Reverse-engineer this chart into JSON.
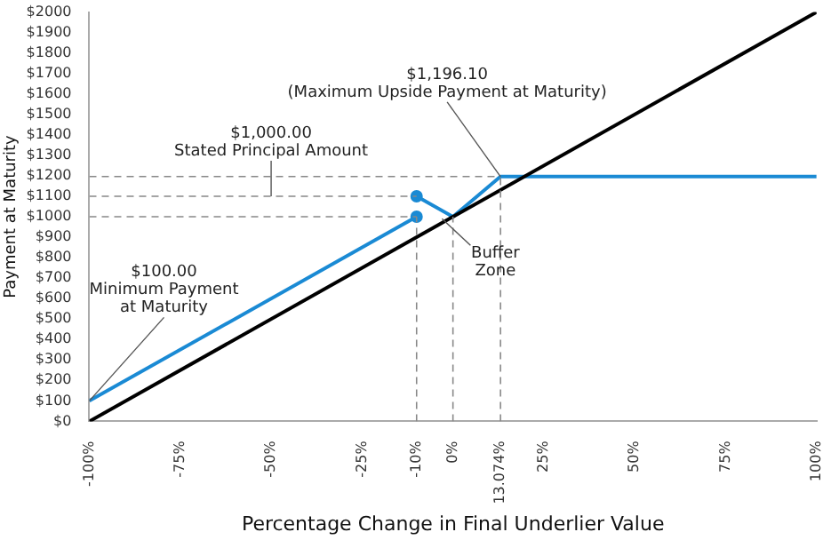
{
  "chart_data": {
    "type": "line",
    "xlabel": "Percentage Change in Final Underlier Value",
    "ylabel": "Payment at Maturity",
    "xlim": [
      -100,
      100
    ],
    "ylim": [
      0,
      2000
    ],
    "xticks": [
      {
        "value": -100,
        "label": "-100%"
      },
      {
        "value": -75,
        "label": "-75%"
      },
      {
        "value": -50,
        "label": "-50%"
      },
      {
        "value": -25,
        "label": "-25%"
      },
      {
        "value": -10,
        "label": "-10%"
      },
      {
        "value": 0,
        "label": "0%"
      },
      {
        "value": 13.074,
        "label": "13.074%"
      },
      {
        "value": 25,
        "label": "25%"
      },
      {
        "value": 50,
        "label": "50%"
      },
      {
        "value": 75,
        "label": "75%"
      },
      {
        "value": 100,
        "label": "100%"
      }
    ],
    "yticks": [
      {
        "value": 0,
        "label": "$0"
      },
      {
        "value": 100,
        "label": "$100"
      },
      {
        "value": 200,
        "label": "$200"
      },
      {
        "value": 300,
        "label": "$300"
      },
      {
        "value": 400,
        "label": "$400"
      },
      {
        "value": 500,
        "label": "$500"
      },
      {
        "value": 600,
        "label": "$600"
      },
      {
        "value": 700,
        "label": "$700"
      },
      {
        "value": 800,
        "label": "$800"
      },
      {
        "value": 900,
        "label": "$900"
      },
      {
        "value": 1000,
        "label": "$1000"
      },
      {
        "value": 1100,
        "label": "$1100"
      },
      {
        "value": 1200,
        "label": "$1200"
      },
      {
        "value": 1300,
        "label": "$1300"
      },
      {
        "value": 1400,
        "label": "$1400"
      },
      {
        "value": 1500,
        "label": "$1500"
      },
      {
        "value": 1600,
        "label": "$1600"
      },
      {
        "value": 1700,
        "label": "$1700"
      },
      {
        "value": 1800,
        "label": "$1800"
      },
      {
        "value": 1900,
        "label": "$1900"
      },
      {
        "value": 2000,
        "label": "$2000"
      }
    ],
    "grid": false,
    "legend": false,
    "series": [
      {
        "color": "#888888",
        "line_style": "dashed",
        "x": [
          -100,
          -10
        ],
        "values": [
          1000,
          1000
        ]
      },
      {
        "color": "#888888",
        "line_style": "dashed",
        "x": [
          -100,
          -10
        ],
        "values": [
          1100,
          1100
        ]
      },
      {
        "color": "#888888",
        "line_style": "dashed",
        "x": [
          -100,
          13.074
        ],
        "values": [
          1196.1,
          1196.1
        ]
      },
      {
        "color": "#888888",
        "line_style": "dashed",
        "x": [
          -10,
          -10
        ],
        "values": [
          0,
          1000
        ]
      },
      {
        "color": "#888888",
        "line_style": "dashed",
        "x": [
          0,
          0
        ],
        "values": [
          0,
          1000
        ]
      },
      {
        "color": "#888888",
        "line_style": "dashed",
        "x": [
          13.074,
          13.074
        ],
        "values": [
          0,
          1196.1
        ]
      },
      {
        "color": "#000000",
        "line_style": "solid",
        "x": [
          -100,
          100
        ],
        "values": [
          0,
          2000
        ]
      },
      {
        "color": "#1a8ad4",
        "line_style": "solid",
        "x": [
          -100,
          -10
        ],
        "values": [
          100,
          1000
        ]
      },
      {
        "color": "#1a8ad4",
        "line_style": "solid",
        "x": [
          -10,
          0,
          13.074,
          100
        ],
        "values": [
          1100,
          1000,
          1196.1,
          1196.1
        ]
      },
      {
        "type": "scatter",
        "color": "#1a8ad4",
        "marker": "circle",
        "x": [
          -10,
          -10
        ],
        "values": [
          1000,
          1100
        ]
      }
    ],
    "annotations": [
      {
        "text": "$1,196.10\n(Maximum Upside Payment at Maturity)",
        "x": 13.074,
        "y": 1196.1
      },
      {
        "text": "$1,000.00\nStated Principal Amount",
        "x": -50,
        "y": 1100
      },
      {
        "text": "$100.00\nMinimum Payment\nat Maturity",
        "x": -100,
        "y": 100
      },
      {
        "text": "Buffer\nZone",
        "x": -3,
        "y": 990
      }
    ]
  }
}
